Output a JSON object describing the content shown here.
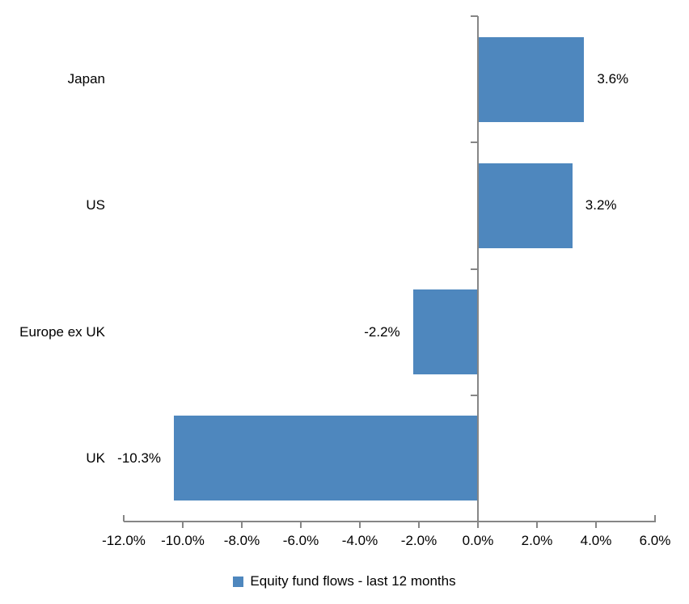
{
  "chart_data": {
    "type": "bar",
    "orientation": "horizontal",
    "title": "",
    "categories": [
      "Japan",
      "US",
      "Europe ex UK",
      "UK"
    ],
    "series": [
      {
        "name": "Equity fund flows - last 12 months",
        "values": [
          3.6,
          3.2,
          -2.2,
          -10.3
        ],
        "data_labels": [
          "3.6%",
          "3.2%",
          "-2.2%",
          "-10.3%"
        ]
      }
    ],
    "xlabel": "",
    "ylabel": "",
    "xlim": [
      -12,
      6
    ],
    "x_tick_step": 2,
    "x_ticks": [
      -12,
      -10,
      -8,
      -6,
      -4,
      -2,
      0,
      2,
      4,
      6
    ],
    "x_tick_labels": [
      "-12.0%",
      "-10.0%",
      "-8.0%",
      "-6.0%",
      "-4.0%",
      "-2.0%",
      "0.0%",
      "2.0%",
      "4.0%",
      "6.0%"
    ],
    "grid": false,
    "legend_position": "bottom",
    "colors": {
      "bar": "#4E87BE",
      "axis": "#868686",
      "text": "#000000",
      "background": "#FFFFFF"
    }
  },
  "legend": {
    "label": "Equity fund flows - last 12 months"
  }
}
